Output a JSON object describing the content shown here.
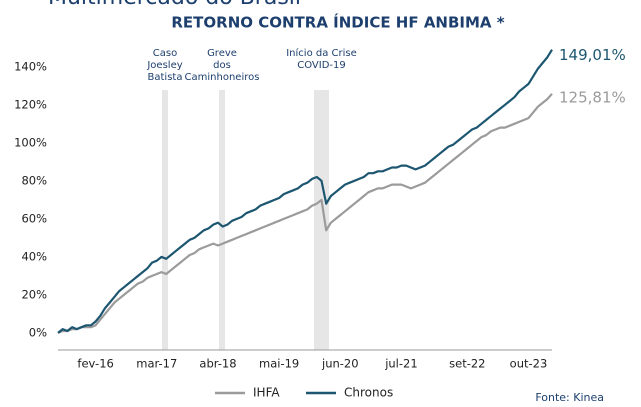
{
  "header": "Multimercado do Brasil",
  "chart_data": {
    "type": "line",
    "title": "RETORNO CONTRA ÍNDICE HF ANBIMA *",
    "source": "Fonte: Kinea",
    "annotations": [
      [
        "Caso",
        "Joesley",
        "Batista"
      ],
      [
        "Greve",
        "dos",
        "Caminhoneiros"
      ],
      [
        "Início da Crise",
        "COVID-19"
      ]
    ],
    "categories": [
      null,
      null,
      null,
      null,
      null,
      null,
      null,
      null,
      "fev-16",
      null,
      null,
      null,
      null,
      null,
      null,
      null,
      null,
      null,
      null,
      null,
      null,
      "mar-17",
      null,
      null,
      null,
      null,
      null,
      null,
      null,
      null,
      null,
      null,
      null,
      null,
      "abr-18",
      null,
      null,
      null,
      null,
      null,
      null,
      null,
      null,
      null,
      null,
      null,
      null,
      "mai-19",
      null,
      null,
      null,
      null,
      null,
      null,
      null,
      null,
      null,
      null,
      null,
      null,
      "jun-20",
      null,
      null,
      null,
      null,
      null,
      null,
      null,
      null,
      null,
      null,
      null,
      null,
      "jul-21",
      null,
      null,
      null,
      null,
      null,
      null,
      null,
      null,
      null,
      null,
      null,
      null,
      null,
      "set-22",
      null,
      null,
      null,
      null,
      null,
      null,
      null,
      null,
      null,
      null,
      null,
      null,
      "out-23",
      null,
      null,
      null,
      null,
      null
    ],
    "series": [
      {
        "name": "IHFA",
        "color": "#9b9b9b",
        "last_label": "125,81%",
        "values": [
          0,
          1,
          1,
          2,
          2,
          3,
          3,
          3,
          4,
          7,
          10,
          13,
          16,
          18,
          20,
          22,
          24,
          26,
          27,
          29,
          30,
          31,
          32,
          31,
          33,
          35,
          37,
          39,
          41,
          42,
          44,
          45,
          46,
          47,
          46,
          47,
          48,
          49,
          50,
          51,
          52,
          53,
          54,
          55,
          56,
          57,
          58,
          59,
          60,
          61,
          62,
          63,
          64,
          65,
          67,
          68,
          70,
          54,
          58,
          60,
          62,
          64,
          66,
          68,
          70,
          72,
          74,
          75,
          76,
          76,
          77,
          78,
          78,
          78,
          77,
          76,
          77,
          78,
          79,
          81,
          83,
          85,
          87,
          89,
          91,
          93,
          95,
          97,
          99,
          101,
          103,
          104,
          106,
          107,
          108,
          108,
          109,
          110,
          111,
          112,
          113,
          116,
          119,
          121,
          123,
          125.81
        ]
      },
      {
        "name": "Chronos",
        "color": "#1d5670",
        "last_label": "149,01%",
        "values": [
          0,
          2,
          1,
          3,
          2,
          3,
          4,
          4,
          6,
          9,
          13,
          16,
          19,
          22,
          24,
          26,
          28,
          30,
          32,
          34,
          37,
          38,
          40,
          39,
          41,
          43,
          45,
          47,
          49,
          50,
          52,
          54,
          55,
          57,
          58,
          56,
          57,
          59,
          60,
          61,
          63,
          64,
          65,
          67,
          68,
          69,
          70,
          71,
          73,
          74,
          75,
          76,
          78,
          79,
          81,
          82,
          80,
          68,
          72,
          74,
          76,
          78,
          79,
          80,
          81,
          82,
          84,
          84,
          85,
          85,
          86,
          87,
          87,
          88,
          88,
          87,
          86,
          87,
          88,
          90,
          92,
          94,
          96,
          98,
          99,
          101,
          103,
          105,
          107,
          108,
          110,
          112,
          114,
          116,
          118,
          120,
          122,
          124,
          127,
          129,
          131,
          135,
          139,
          142,
          145,
          149.01
        ]
      }
    ],
    "ylim": [
      -9,
      152
    ],
    "yticks": [
      {
        "value": 0,
        "label": "0%"
      },
      {
        "value": 20,
        "label": "20%"
      },
      {
        "value": 40,
        "label": "40%"
      },
      {
        "value": 60,
        "label": "60%"
      },
      {
        "value": 80,
        "label": "80%"
      },
      {
        "value": 100,
        "label": "100%"
      },
      {
        "value": 120,
        "label": "120%"
      },
      {
        "value": 140,
        "label": "140%"
      }
    ],
    "grid": false
  }
}
